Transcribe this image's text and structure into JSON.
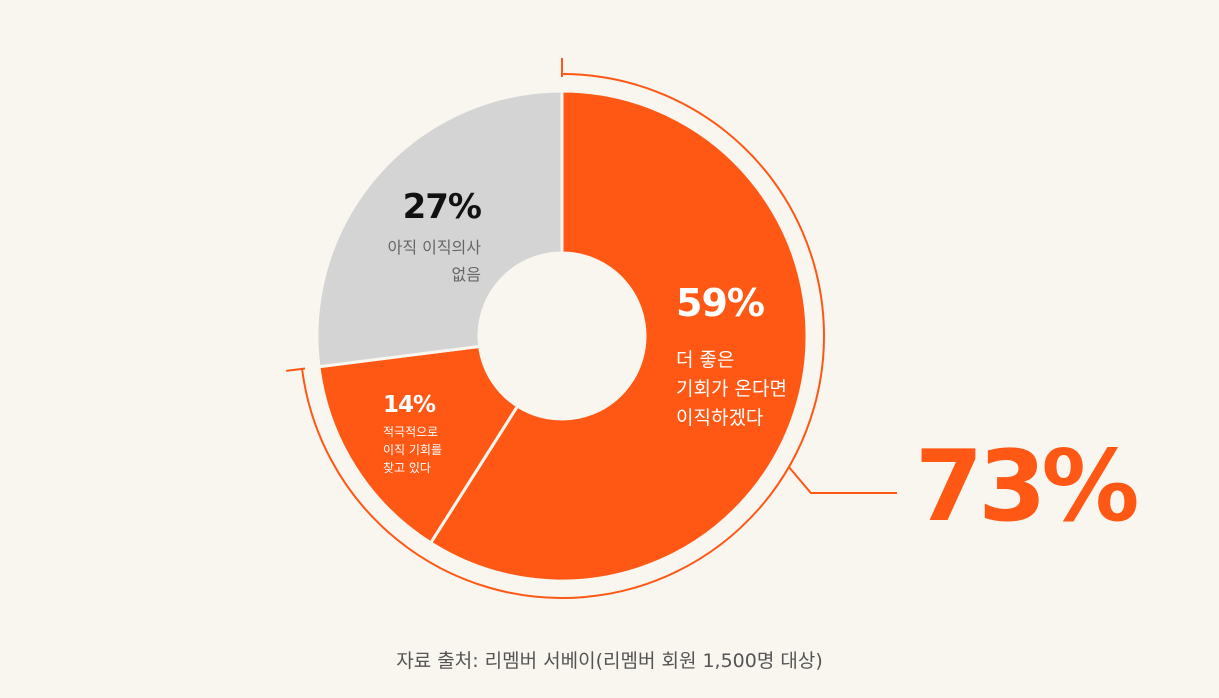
{
  "chart_data": {
    "type": "pie",
    "slices": [
      {
        "label_lines": [
          "더 좋은",
          "기회가 온다면",
          "이직하겠다"
        ],
        "value": 59,
        "value_label": "59%",
        "color": "#ff5714"
      },
      {
        "label_lines": [
          "적극적으로",
          "이직 기회를",
          "찾고 있다"
        ],
        "value": 14,
        "value_label": "14%",
        "color": "#ff5714"
      },
      {
        "label_lines": [
          "아직 이직의사",
          "없음"
        ],
        "value": 27,
        "value_label": "27%",
        "color": "#d4d4d4"
      }
    ],
    "combined_highlight": {
      "value": 73,
      "label": "73%"
    }
  },
  "source_text": "자료 출처: 리멤버 서베이(리멤버 회원 1,500명 대상)",
  "colors": {
    "accent": "#ff5714",
    "neutral": "#d4d4d4",
    "background": "#f8f6ef"
  }
}
